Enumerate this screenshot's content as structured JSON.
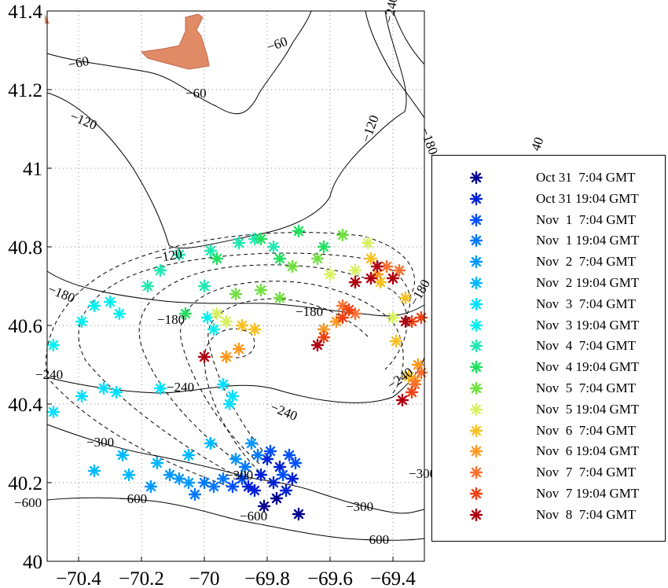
{
  "chart_data": {
    "type": "scatter",
    "xlim": [
      -70.5,
      -69.3
    ],
    "ylim": [
      40.0,
      41.4
    ],
    "x_ticks": [
      -70.4,
      -70.2,
      -70.0,
      -69.8,
      -69.6,
      -69.4
    ],
    "x_tick_labels": [
      "−70.4",
      "−70.2",
      "−70",
      "−69.8",
      "−69.6",
      "−69.4"
    ],
    "y_ticks": [
      40.0,
      40.2,
      40.4,
      40.6,
      40.8,
      41.0,
      41.2,
      41.4
    ],
    "y_tick_labels": [
      "40",
      "40.2",
      "40.4",
      "40.6",
      "40.8",
      "41",
      "41.2",
      "41.4"
    ],
    "grid": true,
    "legend_position": "right",
    "marker": "*",
    "contour_labels": [
      "−60",
      "−60",
      "−60",
      "−120",
      "−120",
      "−120",
      "−180",
      "−180",
      "−180",
      "−180",
      "−240",
      "−240",
      "−240",
      "−240",
      "−300",
      "−300",
      "−300",
      "−300",
      "−600",
      "−600",
      "−600",
      "−600",
      "−180",
      "−240",
      "40"
    ],
    "series": [
      {
        "name": "Oct 31  7:04 GMT",
        "color": "#00008f",
        "points": [
          [
            -69.7,
            40.12
          ],
          [
            -69.77,
            40.16
          ],
          [
            -69.81,
            40.14
          ]
        ]
      },
      {
        "name": "Oct 31 19:04 GMT",
        "color": "#0020d8",
        "points": [
          [
            -69.74,
            40.18
          ],
          [
            -69.78,
            40.2
          ],
          [
            -69.82,
            40.22
          ],
          [
            -69.86,
            40.19
          ],
          [
            -69.76,
            40.24
          ],
          [
            -69.72,
            40.21
          ],
          [
            -69.8,
            40.26
          ],
          [
            -69.84,
            40.18
          ]
        ]
      },
      {
        "name": "Nov  1  7:04 GMT",
        "color": "#0050ff",
        "points": [
          [
            -69.73,
            40.27
          ],
          [
            -69.79,
            40.28
          ],
          [
            -69.88,
            40.21
          ],
          [
            -69.91,
            40.19
          ],
          [
            -69.75,
            40.22
          ],
          [
            -69.71,
            40.25
          ]
        ]
      },
      {
        "name": "Nov  1 19:04 GMT",
        "color": "#0078ff",
        "points": [
          [
            -69.94,
            40.21
          ],
          [
            -69.97,
            40.19
          ],
          [
            -70.03,
            40.17
          ],
          [
            -69.87,
            40.24
          ],
          [
            -69.83,
            40.27
          ],
          [
            -70.0,
            40.2
          ]
        ]
      },
      {
        "name": "Nov  2  7:04 GMT",
        "color": "#0098ff",
        "points": [
          [
            -70.08,
            40.21
          ],
          [
            -70.11,
            40.22
          ],
          [
            -70.17,
            40.19
          ],
          [
            -69.9,
            40.26
          ],
          [
            -69.85,
            40.3
          ],
          [
            -70.05,
            40.2
          ]
        ]
      },
      {
        "name": "Nov  2 19:04 GMT",
        "color": "#00b8ff",
        "points": [
          [
            -70.24,
            40.22
          ],
          [
            -70.26,
            40.27
          ],
          [
            -70.35,
            40.23
          ],
          [
            -70.15,
            40.25
          ],
          [
            -70.05,
            40.27
          ],
          [
            -69.98,
            40.3
          ]
        ]
      },
      {
        "name": "Nov  3  7:04 GMT",
        "color": "#00e0ff",
        "points": [
          [
            -70.39,
            40.42
          ],
          [
            -70.32,
            40.44
          ],
          [
            -70.28,
            40.43
          ],
          [
            -70.48,
            40.38
          ],
          [
            -70.14,
            40.44
          ],
          [
            -69.94,
            40.45
          ],
          [
            -69.91,
            40.42
          ],
          [
            -69.92,
            40.4
          ]
        ]
      },
      {
        "name": "Nov  3 19:04 GMT",
        "color": "#00f0f0",
        "points": [
          [
            -70.48,
            40.55
          ],
          [
            -70.39,
            40.61
          ],
          [
            -70.35,
            40.65
          ],
          [
            -70.3,
            40.66
          ],
          [
            -70.27,
            40.63
          ],
          [
            -69.99,
            40.62
          ],
          [
            -69.97,
            40.59
          ]
        ]
      },
      {
        "name": "Nov  4  7:04 GMT",
        "color": "#20e8b0",
        "points": [
          [
            -70.18,
            40.7
          ],
          [
            -70.14,
            40.74
          ],
          [
            -70.08,
            40.78
          ],
          [
            -69.98,
            40.79
          ],
          [
            -69.89,
            40.81
          ],
          [
            -69.84,
            40.82
          ],
          [
            -69.78,
            40.8
          ],
          [
            -70.0,
            40.7
          ]
        ]
      },
      {
        "name": "Nov  4 19:04 GMT",
        "color": "#20e060",
        "points": [
          [
            -70.06,
            40.63
          ],
          [
            -69.82,
            40.82
          ],
          [
            -69.7,
            40.84
          ],
          [
            -69.62,
            40.8
          ],
          [
            -69.76,
            40.77
          ],
          [
            -69.96,
            40.77
          ]
        ]
      },
      {
        "name": "Nov  5  7:04 GMT",
        "color": "#70e040",
        "points": [
          [
            -69.82,
            40.69
          ],
          [
            -69.9,
            40.68
          ],
          [
            -69.72,
            40.75
          ],
          [
            -69.64,
            40.77
          ],
          [
            -69.56,
            40.83
          ],
          [
            -69.76,
            40.67
          ]
        ]
      },
      {
        "name": "Nov  5 19:04 GMT",
        "color": "#d8f060",
        "points": [
          [
            -69.96,
            40.63
          ],
          [
            -69.93,
            40.61
          ],
          [
            -69.48,
            40.81
          ],
          [
            -69.52,
            40.74
          ],
          [
            -69.6,
            40.73
          ],
          [
            -69.4,
            40.62
          ]
        ]
      },
      {
        "name": "Nov  6  7:04 GMT",
        "color": "#f8c020",
        "points": [
          [
            -69.88,
            40.6
          ],
          [
            -69.84,
            40.59
          ],
          [
            -69.47,
            40.77
          ],
          [
            -69.44,
            40.71
          ],
          [
            -69.36,
            40.67
          ],
          [
            -69.39,
            40.56
          ],
          [
            -69.35,
            40.47
          ]
        ]
      },
      {
        "name": "Nov  6 19:04 GMT",
        "color": "#f89820",
        "points": [
          [
            -69.93,
            40.52
          ],
          [
            -69.89,
            40.54
          ],
          [
            -69.62,
            40.59
          ],
          [
            -69.58,
            40.61
          ],
          [
            -69.45,
            40.73
          ],
          [
            -69.32,
            40.5
          ],
          [
            -69.33,
            40.46
          ]
        ]
      },
      {
        "name": "Nov  7  7:04 GMT",
        "color": "#f87030",
        "points": [
          [
            -69.56,
            40.65
          ],
          [
            -69.52,
            40.63
          ],
          [
            -69.42,
            40.75
          ],
          [
            -69.38,
            40.74
          ],
          [
            -69.33,
            40.45
          ],
          [
            -69.31,
            40.48
          ]
        ]
      },
      {
        "name": "Nov  7 19:04 GMT",
        "color": "#f04010",
        "points": [
          [
            -69.62,
            40.57
          ],
          [
            -69.56,
            40.62
          ],
          [
            -69.54,
            40.64
          ],
          [
            -69.34,
            40.61
          ],
          [
            -69.31,
            40.62
          ],
          [
            -69.34,
            40.43
          ]
        ]
      },
      {
        "name": "Nov  8  7:04 GMT",
        "color": "#b00010",
        "points": [
          [
            -70.0,
            40.52
          ],
          [
            -69.64,
            40.55
          ],
          [
            -69.52,
            40.71
          ],
          [
            -69.47,
            40.72
          ],
          [
            -69.4,
            40.72
          ],
          [
            -69.45,
            40.75
          ],
          [
            -69.36,
            40.61
          ],
          [
            -69.37,
            40.41
          ]
        ]
      }
    ]
  }
}
